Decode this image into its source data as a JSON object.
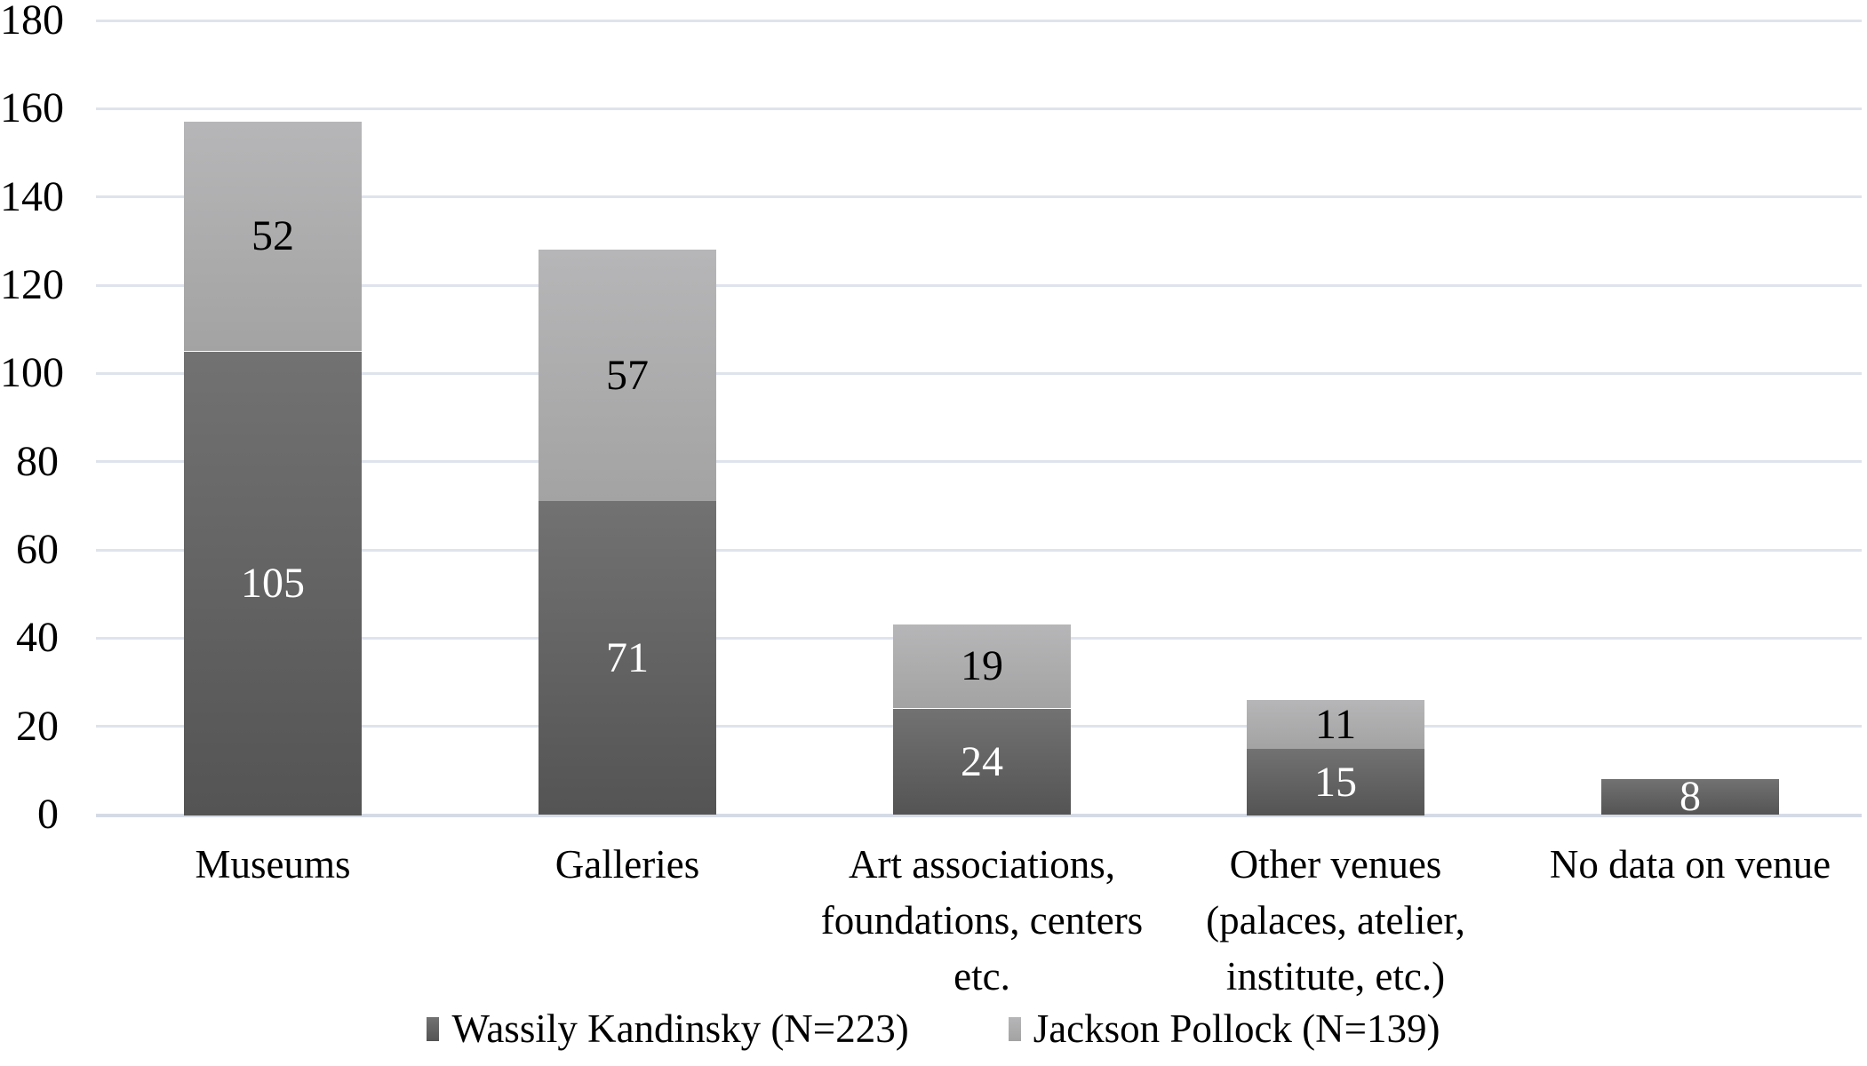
{
  "chart_data": {
    "type": "bar",
    "stacked": true,
    "title": "",
    "xlabel": "",
    "ylabel": "",
    "categories": [
      "Museums",
      "Galleries",
      "Art associations, foundations, centers etc.",
      "Other venues (palaces, atelier, institute, etc.)",
      "No data on venue"
    ],
    "category_lines": [
      [
        "Museums"
      ],
      [
        "Galleries"
      ],
      [
        "Art associations,",
        "foundations, centers",
        "etc."
      ],
      [
        "Other venues",
        "(palaces, atelier,",
        "institute, etc.)"
      ],
      [
        "No data on venue"
      ]
    ],
    "series": [
      {
        "name": "Wassily Kandinsky (N=223)",
        "values": [
          105,
          71,
          24,
          15,
          8
        ],
        "color_top": "#727272",
        "color_bottom": "#545454",
        "label_color": "#ffffff"
      },
      {
        "name": "Jackson Pollock (N=139)",
        "values": [
          52,
          57,
          19,
          11,
          0
        ],
        "color_top": "#b6b6b8",
        "color_bottom": "#a3a3a3",
        "label_color": "#000000"
      }
    ],
    "totals": [
      157,
      128,
      43,
      26,
      8
    ],
    "ylim": [
      0,
      180
    ],
    "yticks": [
      0,
      20,
      40,
      60,
      80,
      100,
      120,
      140,
      160,
      180
    ],
    "grid": "horizontal",
    "gridline_color": "#dfe3ec",
    "axisline_color": "#d5dbe6",
    "legend_position": "bottom"
  }
}
